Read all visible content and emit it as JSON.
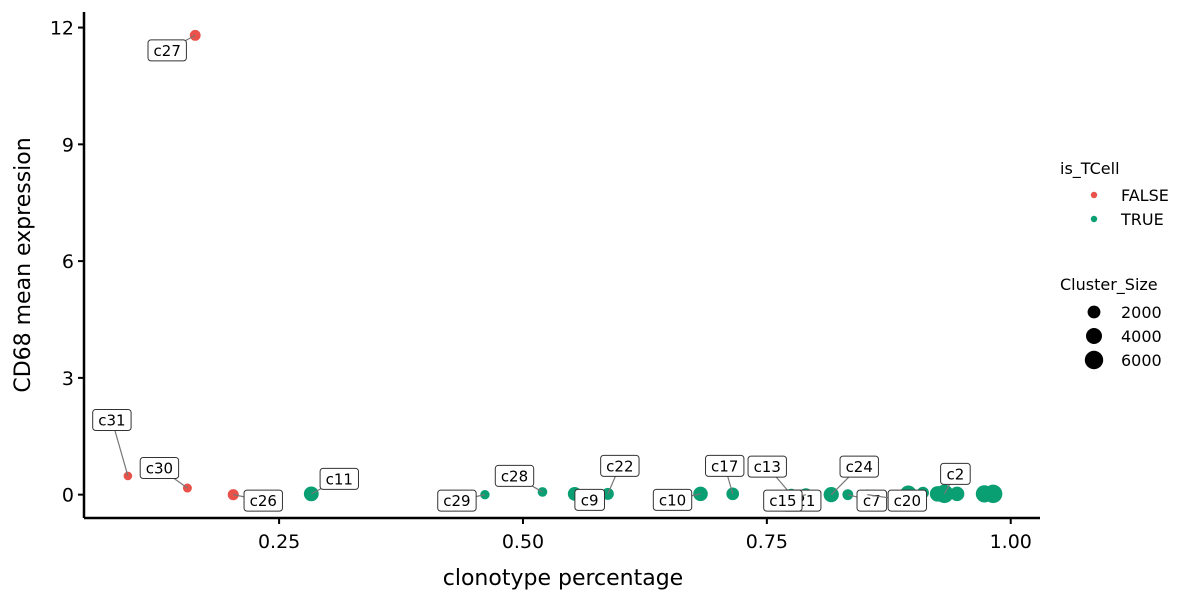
{
  "chart_data": {
    "type": "scatter",
    "xlabel": "clonotype percentage",
    "ylabel": "CD68 mean expression",
    "xlim": [
      0.05,
      1.03
    ],
    "ylim": [
      -0.6,
      12.4
    ],
    "xticks": [
      0.25,
      0.5,
      0.75,
      1.0
    ],
    "xtick_labels": [
      "0.25",
      "0.50",
      "0.75",
      "1.00"
    ],
    "yticks": [
      0,
      3,
      6,
      9,
      12
    ],
    "ytick_labels": [
      "0",
      "3",
      "6",
      "9",
      "12"
    ],
    "grid": false,
    "legend_position": "right",
    "color_legend": {
      "title": "is_TCell",
      "entries": [
        {
          "label": "FALSE",
          "color": "#e8524a"
        },
        {
          "label": "TRUE",
          "color": "#0a9e73"
        }
      ]
    },
    "size_legend": {
      "title": "Cluster_Size",
      "entries": [
        {
          "label": "2000",
          "value": 2000
        },
        {
          "label": "4000",
          "value": 4000
        },
        {
          "label": "6000",
          "value": 6000
        }
      ]
    },
    "points": [
      {
        "x": 0.164,
        "y": 11.8,
        "is_TCell": "FALSE",
        "size": 1100,
        "label": "c27"
      },
      {
        "x": 0.095,
        "y": 0.48,
        "is_TCell": "FALSE",
        "size": 400,
        "label": "c31"
      },
      {
        "x": 0.156,
        "y": 0.17,
        "is_TCell": "FALSE",
        "size": 500,
        "label": "c30"
      },
      {
        "x": 0.203,
        "y": 0.0,
        "is_TCell": "FALSE",
        "size": 1200,
        "label": "c26"
      },
      {
        "x": 0.283,
        "y": 0.02,
        "is_TCell": "TRUE",
        "size": 3200,
        "label": "c11"
      },
      {
        "x": 0.461,
        "y": 0.0,
        "is_TCell": "TRUE",
        "size": 600,
        "label": "c29"
      },
      {
        "x": 0.52,
        "y": 0.07,
        "is_TCell": "TRUE",
        "size": 700,
        "label": "c28"
      },
      {
        "x": 0.553,
        "y": 0.02,
        "is_TCell": "TRUE",
        "size": 2500,
        "label": "c9"
      },
      {
        "x": 0.587,
        "y": 0.02,
        "is_TCell": "TRUE",
        "size": 1600,
        "label": "c22"
      },
      {
        "x": 0.682,
        "y": 0.02,
        "is_TCell": "TRUE",
        "size": 3000,
        "label": "c10"
      },
      {
        "x": 0.715,
        "y": 0.02,
        "is_TCell": "TRUE",
        "size": 1900,
        "label": "c17"
      },
      {
        "x": 0.755,
        "y": 0.0,
        "is_TCell": "TRUE",
        "size": 500,
        "label": "c21"
      },
      {
        "x": 0.775,
        "y": 0.0,
        "is_TCell": "TRUE",
        "size": 1500,
        "label": "c13"
      },
      {
        "x": 0.79,
        "y": 0.0,
        "is_TCell": "TRUE",
        "size": 2000,
        "label": "c15"
      },
      {
        "x": 0.816,
        "y": 0.0,
        "is_TCell": "TRUE",
        "size": 3500,
        "label": "c24"
      },
      {
        "x": 0.833,
        "y": 0.0,
        "is_TCell": "TRUE",
        "size": 1100,
        "label": "c7"
      },
      {
        "x": 0.853,
        "y": 0.0,
        "is_TCell": "TRUE",
        "size": 900,
        "label": "c20"
      },
      {
        "x": 0.895,
        "y": 0.02,
        "is_TCell": "TRUE",
        "size": 4500,
        "label": ""
      },
      {
        "x": 0.91,
        "y": 0.05,
        "is_TCell": "TRUE",
        "size": 1600,
        "label": ""
      },
      {
        "x": 0.925,
        "y": 0.02,
        "is_TCell": "TRUE",
        "size": 3600,
        "label": ""
      },
      {
        "x": 0.932,
        "y": 0.02,
        "is_TCell": "TRUE",
        "size": 6000,
        "label": "c2"
      },
      {
        "x": 0.945,
        "y": 0.02,
        "is_TCell": "TRUE",
        "size": 3000,
        "label": ""
      },
      {
        "x": 0.973,
        "y": 0.02,
        "is_TCell": "TRUE",
        "size": 5000,
        "label": ""
      },
      {
        "x": 0.982,
        "y": 0.02,
        "is_TCell": "TRUE",
        "size": 6000,
        "label": ""
      }
    ]
  }
}
